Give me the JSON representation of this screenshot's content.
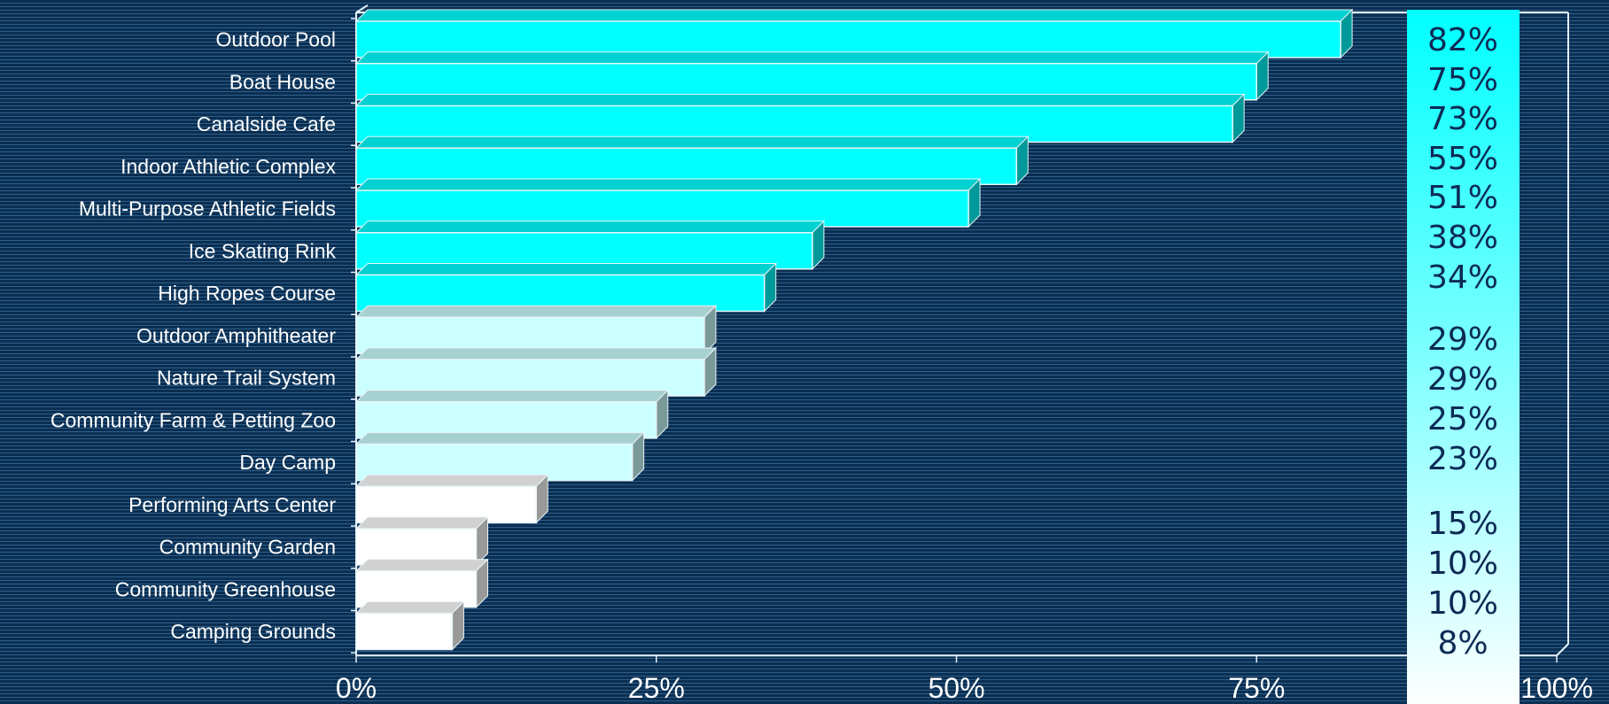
{
  "chart_data": {
    "type": "bar",
    "orientation": "horizontal",
    "categories": [
      "Outdoor Pool",
      "Boat House",
      "Canalside Cafe",
      "Indoor Athletic Complex",
      "Multi-Purpose Athletic Fields",
      "Ice Skating Rink",
      "High Ropes Course",
      "Outdoor Amphitheater",
      "Nature Trail System",
      "Community Farm & Petting Zoo",
      "Day Camp",
      "Performing Arts Center",
      "Community Garden",
      "Community Greenhouse",
      "Camping Grounds"
    ],
    "values": [
      82,
      75,
      73,
      55,
      51,
      38,
      34,
      29,
      29,
      25,
      23,
      15,
      10,
      10,
      8
    ],
    "data_labels": [
      "82%",
      "75%",
      "73%",
      "55%",
      "51%",
      "38%",
      "34%",
      "29%",
      "29%",
      "25%",
      "23%",
      "15%",
      "10%",
      "10%",
      "8%"
    ],
    "xlim": [
      0,
      100
    ],
    "x_ticks": [
      0,
      25,
      50,
      75,
      100
    ],
    "x_tick_labels": [
      "0%",
      "25%",
      "50%",
      "75%",
      "100%"
    ],
    "grid": false,
    "legend": "none",
    "tiers": [
      {
        "count": 7,
        "color": "#00ffff"
      },
      {
        "count": 4,
        "color": "#ccffff"
      },
      {
        "count": 4,
        "color": "#ffffff"
      }
    ],
    "label_panel_gradient": [
      "#00ffff",
      "#ffffff"
    ]
  }
}
